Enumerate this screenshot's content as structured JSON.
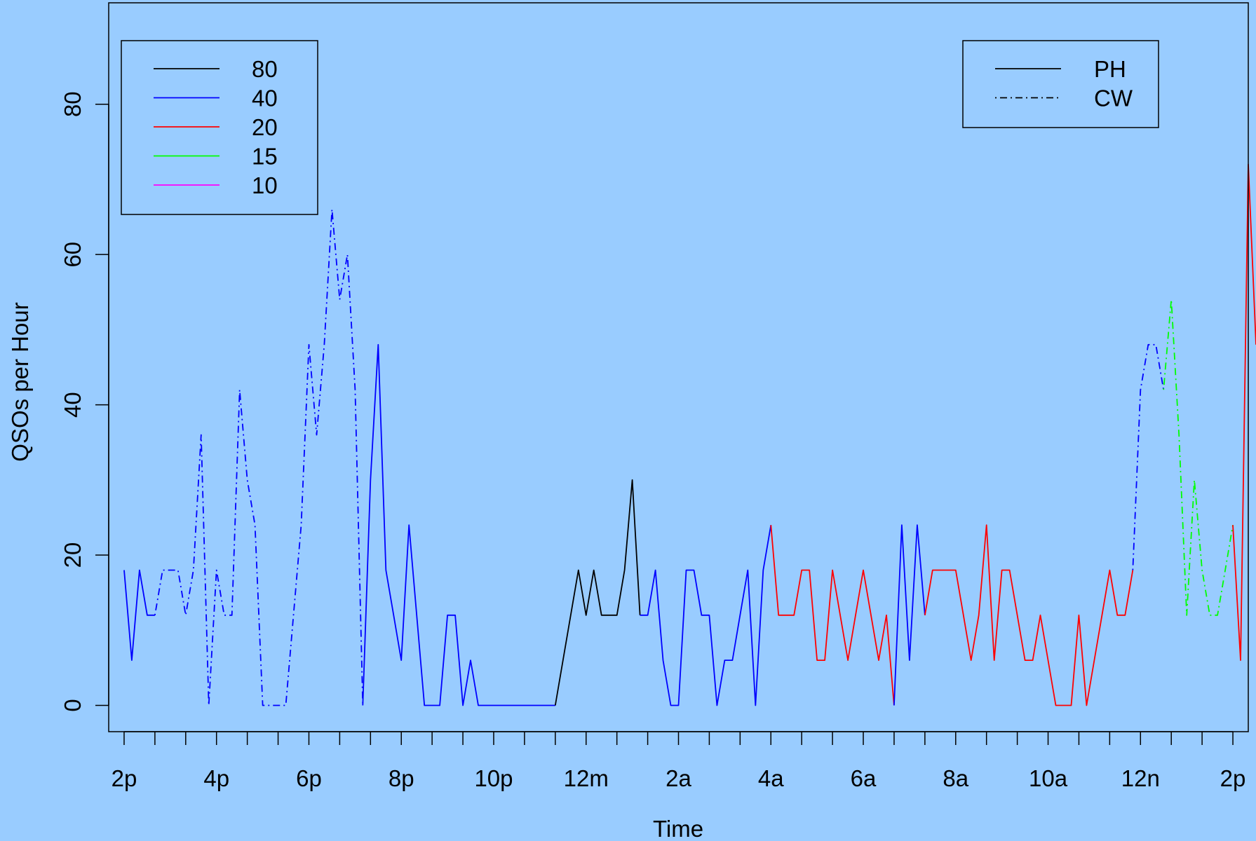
{
  "chart_data": {
    "type": "line",
    "title": "",
    "xlabel": "Time",
    "ylabel": "QSOs per Hour",
    "xlim": [
      -0.5,
      36.5
    ],
    "ylim": [
      -3.5,
      93.5
    ],
    "x_ticks": [
      0,
      1,
      2,
      3,
      4,
      5,
      6,
      7,
      8,
      9,
      10,
      11,
      12,
      13,
      14,
      15,
      16,
      17,
      18,
      19,
      20,
      21,
      22,
      23,
      24,
      25,
      26,
      27,
      28,
      29,
      30,
      31,
      32,
      33,
      34,
      35,
      36
    ],
    "x_tick_labels": [
      {
        "x": 0,
        "label": "2p"
      },
      {
        "x": 3,
        "label": "4p"
      },
      {
        "x": 6,
        "label": "6p"
      },
      {
        "x": 9,
        "label": "8p"
      },
      {
        "x": 12,
        "label": "10p"
      },
      {
        "x": 15,
        "label": "12m"
      },
      {
        "x": 18,
        "label": "2a"
      },
      {
        "x": 21,
        "label": "4a"
      },
      {
        "x": 24,
        "label": "6a"
      },
      {
        "x": 27,
        "label": "8a"
      },
      {
        "x": 30,
        "label": "10a"
      },
      {
        "x": 33,
        "label": "12n"
      },
      {
        "x": 36,
        "label": "2p"
      }
    ],
    "y_ticks": [
      {
        "y": 0,
        "label": "0"
      },
      {
        "y": 20,
        "label": "20"
      },
      {
        "y": 40,
        "label": "40"
      },
      {
        "y": 60,
        "label": "60"
      },
      {
        "y": 80,
        "label": "80"
      }
    ],
    "grid": false,
    "band_legend": {
      "placement": "top-left",
      "entries": [
        {
          "label": "80",
          "color": "#000000"
        },
        {
          "label": "40",
          "color": "#0000ff"
        },
        {
          "label": "20",
          "color": "#ff0000"
        },
        {
          "label": "15",
          "color": "#00ff00"
        },
        {
          "label": "10",
          "color": "#ff00ff"
        }
      ]
    },
    "mode_legend": {
      "placement": "top-right",
      "entries": [
        {
          "label": "PH",
          "dash": "solid"
        },
        {
          "label": "CW",
          "dash": "dotdash"
        }
      ]
    },
    "segments": [
      {
        "band": "40",
        "mode": "PH",
        "color": "#0000ff",
        "points": [
          [
            0,
            18
          ],
          [
            0.25,
            6
          ],
          [
            0.5,
            18
          ],
          [
            0.75,
            12
          ],
          [
            1,
            12
          ]
        ]
      },
      {
        "band": "40",
        "mode": "CW",
        "color": "#0000ff",
        "points": [
          [
            1,
            12
          ],
          [
            1.25,
            18
          ],
          [
            1.5,
            18
          ],
          [
            1.75,
            18
          ],
          [
            2,
            12
          ],
          [
            2.25,
            18
          ],
          [
            2.5,
            36
          ],
          [
            2.75,
            0
          ],
          [
            3,
            18
          ],
          [
            3.25,
            12
          ],
          [
            3.5,
            12
          ],
          [
            3.75,
            42
          ],
          [
            4,
            30
          ],
          [
            4.25,
            24
          ],
          [
            4.5,
            0
          ],
          [
            4.75,
            0
          ],
          [
            5,
            0
          ],
          [
            5.25,
            0
          ],
          [
            5.5,
            12
          ],
          [
            5.75,
            24
          ],
          [
            6,
            48
          ],
          [
            6.25,
            36
          ],
          [
            6.5,
            48
          ],
          [
            6.75,
            66
          ],
          [
            7,
            54
          ],
          [
            7.25,
            60
          ],
          [
            7.5,
            42
          ],
          [
            7.75,
            0
          ]
        ]
      },
      {
        "band": "40",
        "mode": "PH",
        "color": "#0000ff",
        "points": [
          [
            7.75,
            0
          ],
          [
            8,
            30
          ],
          [
            8.25,
            48
          ],
          [
            8.5,
            18
          ],
          [
            8.75,
            12
          ],
          [
            9,
            6
          ],
          [
            9.25,
            24
          ],
          [
            9.5,
            12
          ],
          [
            9.75,
            0
          ],
          [
            10,
            0
          ],
          [
            10.25,
            0
          ],
          [
            10.5,
            12
          ],
          [
            10.75,
            12
          ],
          [
            11,
            0
          ],
          [
            11.25,
            6
          ],
          [
            11.5,
            0
          ],
          [
            11.75,
            0
          ],
          [
            12,
            0
          ],
          [
            12.25,
            0
          ],
          [
            12.5,
            0
          ],
          [
            12.75,
            0
          ],
          [
            13,
            0
          ],
          [
            13.25,
            0
          ],
          [
            13.5,
            0
          ],
          [
            13.75,
            0
          ],
          [
            14,
            0
          ]
        ]
      },
      {
        "band": "80",
        "mode": "PH",
        "color": "#000000",
        "points": [
          [
            14,
            0
          ],
          [
            14.25,
            6
          ],
          [
            14.5,
            12
          ],
          [
            14.75,
            18
          ],
          [
            15,
            12
          ],
          [
            15.25,
            18
          ],
          [
            15.5,
            12
          ],
          [
            15.75,
            12
          ],
          [
            16,
            12
          ],
          [
            16.25,
            18
          ],
          [
            16.5,
            30
          ],
          [
            16.75,
            12
          ]
        ]
      },
      {
        "band": "40",
        "mode": "PH",
        "color": "#0000ff",
        "points": [
          [
            16.75,
            12
          ],
          [
            17,
            12
          ],
          [
            17.25,
            18
          ],
          [
            17.5,
            6
          ],
          [
            17.75,
            0
          ],
          [
            18,
            0
          ],
          [
            18.25,
            18
          ],
          [
            18.5,
            18
          ],
          [
            18.75,
            12
          ],
          [
            19,
            12
          ],
          [
            19.25,
            0
          ],
          [
            19.5,
            6
          ],
          [
            19.75,
            6
          ],
          [
            20,
            12
          ],
          [
            20.25,
            18
          ],
          [
            20.5,
            0
          ],
          [
            20.75,
            18
          ],
          [
            21,
            24
          ]
        ]
      },
      {
        "band": "20",
        "mode": "PH",
        "color": "#ff0000",
        "points": [
          [
            21,
            24
          ],
          [
            21.25,
            12
          ],
          [
            21.5,
            12
          ],
          [
            21.75,
            12
          ],
          [
            22,
            18
          ],
          [
            22.25,
            18
          ],
          [
            22.5,
            6
          ],
          [
            22.75,
            6
          ],
          [
            23,
            18
          ],
          [
            23.25,
            12
          ],
          [
            23.5,
            6
          ],
          [
            23.75,
            12
          ],
          [
            24,
            18
          ],
          [
            24.25,
            12
          ],
          [
            24.5,
            6
          ],
          [
            24.75,
            12
          ],
          [
            25,
            0
          ]
        ]
      },
      {
        "band": "40",
        "mode": "PH",
        "color": "#0000ff",
        "points": [
          [
            25,
            0
          ],
          [
            25.25,
            24
          ],
          [
            25.5,
            6
          ],
          [
            25.75,
            24
          ],
          [
            26,
            12
          ]
        ]
      },
      {
        "band": "20",
        "mode": "PH",
        "color": "#ff0000",
        "points": [
          [
            26,
            12
          ],
          [
            26.25,
            18
          ],
          [
            26.5,
            18
          ],
          [
            26.75,
            18
          ],
          [
            27,
            18
          ],
          [
            27.25,
            12
          ],
          [
            27.5,
            6
          ],
          [
            27.75,
            12
          ],
          [
            28,
            24
          ],
          [
            28.25,
            6
          ],
          [
            28.5,
            18
          ],
          [
            28.75,
            18
          ],
          [
            29,
            12
          ],
          [
            29.25,
            6
          ],
          [
            29.5,
            6
          ],
          [
            29.75,
            12
          ],
          [
            30,
            6
          ],
          [
            30.25,
            0
          ],
          [
            30.5,
            0
          ],
          [
            30.75,
            0
          ],
          [
            31,
            12
          ],
          [
            31.25,
            0
          ],
          [
            31.5,
            6
          ],
          [
            31.75,
            12
          ],
          [
            32,
            18
          ],
          [
            32.25,
            12
          ],
          [
            32.5,
            12
          ],
          [
            32.75,
            18
          ]
        ]
      },
      {
        "band": "40",
        "mode": "CW",
        "color": "#0000ff",
        "points": [
          [
            32.75,
            18
          ],
          [
            33,
            42
          ],
          [
            33.25,
            48
          ],
          [
            33.5,
            48
          ],
          [
            33.75,
            42
          ]
        ]
      },
      {
        "band": "15",
        "mode": "CW",
        "color": "#00ff00",
        "points": [
          [
            33.75,
            42
          ],
          [
            34,
            54
          ],
          [
            34.25,
            36
          ],
          [
            34.5,
            12
          ],
          [
            34.75,
            30
          ],
          [
            35,
            18
          ],
          [
            35.25,
            12
          ],
          [
            35.5,
            12
          ],
          [
            35.75,
            18
          ],
          [
            36,
            24
          ]
        ]
      },
      {
        "band": "20",
        "mode": "PH",
        "color": "#ff0000",
        "points": [
          [
            36,
            24
          ],
          [
            36.25,
            6
          ],
          [
            36.5,
            72
          ],
          [
            36.75,
            48
          ]
        ]
      }
    ]
  }
}
